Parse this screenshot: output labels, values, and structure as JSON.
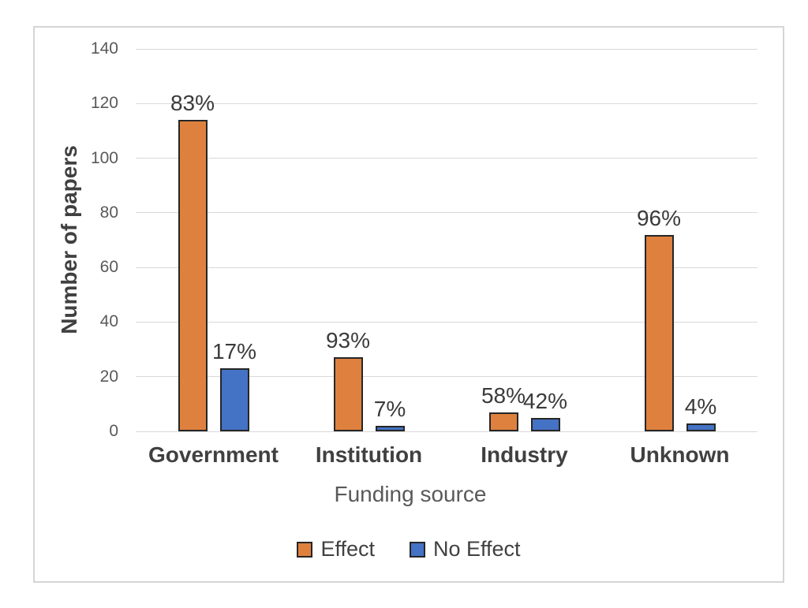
{
  "chart_data": {
    "type": "bar",
    "title": "",
    "categories": [
      "Government",
      "Institution",
      "Industry",
      "Unknown"
    ],
    "series": [
      {
        "name": "Effect",
        "color": "#DF813E",
        "values": [
          114,
          27,
          7,
          72
        ],
        "point_labels": [
          "83%",
          "93%",
          "58%",
          "96%"
        ]
      },
      {
        "name": "No Effect",
        "color": "#4472C4",
        "values": [
          23,
          2,
          5,
          3
        ],
        "point_labels": [
          "17%",
          "7%",
          "42%",
          "4%"
        ]
      }
    ],
    "xlabel": "Funding source",
    "ylabel": "Number of papers",
    "ylim": [
      0,
      140
    ],
    "yticks": [
      0,
      20,
      40,
      60,
      80,
      100,
      120,
      140
    ],
    "grid": true,
    "legend_position": "bottom",
    "bar_border_color": "#262626",
    "gridline_color": "#D9D9D9",
    "tick_label_color": "#595959",
    "category_label_color": "#404040",
    "data_label_color": "#3B3B3B",
    "frame_border_color": "#D5D5D5"
  }
}
